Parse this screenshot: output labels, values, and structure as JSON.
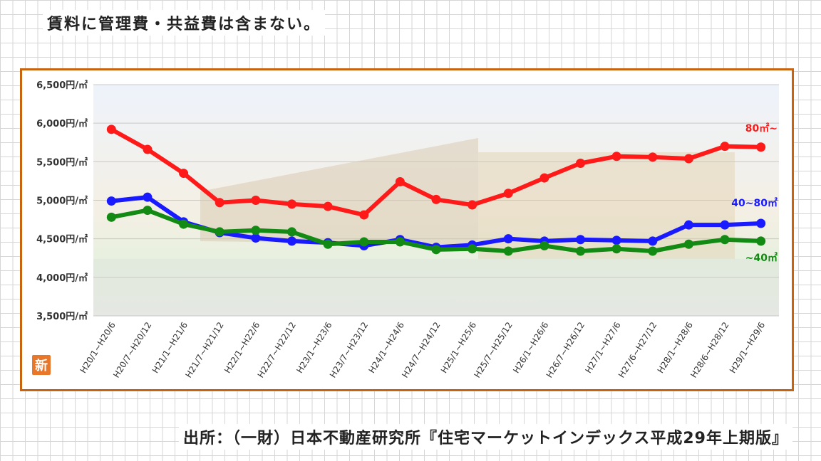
{
  "note": "賃料に管理費・共益費は含まない。",
  "source": "出所：（一財）日本不動産研究所『住宅マーケットインデックス平成29年上期版』",
  "chart_data": {
    "type": "line",
    "categories": [
      "H20/1~H20/6",
      "H20/7~H20/12",
      "H21/1~H21/6",
      "H21/7~H21/12",
      "H22/1~H22/6",
      "H22/7~H22/12",
      "H23/1~H23/6",
      "H23/7~H23/12",
      "H24/1~H24/6",
      "H24/7~H24/12",
      "H25/1~H25/6",
      "H25/7~H25/12",
      "H26/1~H26/6",
      "H26/7~H26/12",
      "H27/1~H27/6",
      "H27/6~H27/12",
      "H28/1~H28/6",
      "H28/6~H28/12",
      "H29/1~H29/6"
    ],
    "series": [
      {
        "name": "80㎡~",
        "color": "#ff1a1a",
        "values": [
          5920,
          5660,
          5350,
          4970,
          5000,
          4950,
          4920,
          4810,
          5240,
          5010,
          4940,
          5090,
          5290,
          5480,
          5570,
          5560,
          5540,
          5700,
          5690
        ]
      },
      {
        "name": "40~80㎡",
        "color": "#1a1aff",
        "values": [
          4990,
          5040,
          4720,
          4580,
          4510,
          4470,
          4450,
          4410,
          4490,
          4390,
          4420,
          4500,
          4470,
          4490,
          4480,
          4470,
          4680,
          4680,
          4700
        ]
      },
      {
        "name": "~40㎡",
        "color": "#138a13",
        "values": [
          4780,
          4870,
          4690,
          4590,
          4610,
          4590,
          4430,
          4460,
          4460,
          4360,
          4370,
          4340,
          4410,
          4340,
          4370,
          4340,
          4430,
          4490,
          4470
        ]
      }
    ],
    "yticks": [
      "6,500円/㎡",
      "6,000円/㎡",
      "5,500円/㎡",
      "5,000円/㎡",
      "4,500円/㎡",
      "4,000円/㎡",
      "3,500円/㎡"
    ],
    "ylim": [
      3500,
      6500
    ],
    "badge": "新"
  }
}
